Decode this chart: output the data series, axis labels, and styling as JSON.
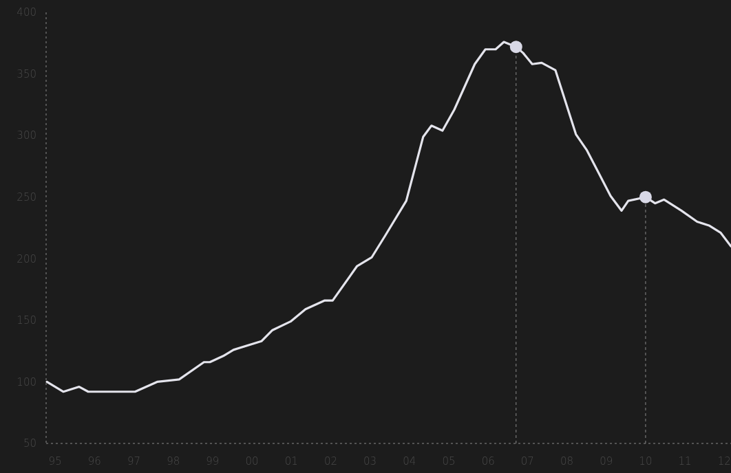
{
  "chart_data": {
    "type": "line",
    "x": [
      1994.79,
      1995.21,
      1995.61,
      1995.84,
      1996.21,
      1996.47,
      1997.03,
      1997.59,
      1998.15,
      1998.78,
      1998.93,
      1999.27,
      1999.53,
      2000.24,
      2000.52,
      2000.98,
      2001.36,
      2001.84,
      2002.05,
      2002.67,
      2003.04,
      2003.39,
      2003.92,
      2004.35,
      2004.56,
      2004.84,
      2005.14,
      2005.66,
      2005.93,
      2006.19,
      2006.4,
      2006.71,
      2006.89,
      2007.12,
      2007.36,
      2007.71,
      2008.23,
      2008.51,
      2009.11,
      2009.39,
      2009.56,
      2010.0,
      2010.24,
      2010.47,
      2010.91,
      2011.31,
      2011.61,
      2011.91,
      2012.17
    ],
    "series": [
      {
        "color": "#e4e4ec",
        "values": [
          100,
          92,
          96,
          92,
          92,
          92,
          92,
          100,
          102,
          116,
          116,
          121,
          126,
          133,
          142,
          149,
          159,
          166,
          166,
          194,
          201,
          219,
          247,
          299,
          308,
          304,
          321,
          358,
          370,
          370,
          376,
          372,
          367,
          358,
          359,
          353,
          301,
          288,
          251,
          239,
          247,
          250,
          245,
          248,
          239,
          230,
          227,
          221,
          210
        ]
      },
      {
        "type": "scatter",
        "marker": "circle",
        "color": "#d8d8e6",
        "x": [
          2006.71,
          2010.0
        ],
        "values": [
          372,
          250
        ]
      }
    ],
    "xlim": [
      1994.77,
      2012.17
    ],
    "xticks": [
      {
        "value": 1995,
        "label": "95"
      },
      {
        "value": 1996,
        "label": "96"
      },
      {
        "value": 1997,
        "label": "97"
      },
      {
        "value": 1998,
        "label": "98"
      },
      {
        "value": 1999,
        "label": "99"
      },
      {
        "value": 2000,
        "label": "00"
      },
      {
        "value": 2001,
        "label": "01"
      },
      {
        "value": 2002,
        "label": "02"
      },
      {
        "value": 2003,
        "label": "03"
      },
      {
        "value": 2004,
        "label": "04"
      },
      {
        "value": 2005,
        "label": "05"
      },
      {
        "value": 2006,
        "label": "06"
      },
      {
        "value": 2007,
        "label": "07"
      },
      {
        "value": 2008,
        "label": "08"
      },
      {
        "value": 2009,
        "label": "09"
      },
      {
        "value": 2010,
        "label": "10"
      },
      {
        "value": 2011,
        "label": "11"
      },
      {
        "value": 2012,
        "label": "12"
      }
    ],
    "ylim": [
      50,
      400
    ],
    "yticks": [
      50,
      100,
      150,
      200,
      250,
      300,
      350,
      400
    ],
    "ref_lines": [
      {
        "axis": "x",
        "value": 2006.71,
        "line_style": "dashed",
        "color": "#8a8a8a"
      },
      {
        "axis": "x",
        "value": 2010.0,
        "line_style": "dashed",
        "color": "#8a8a8a"
      }
    ],
    "grid": false,
    "line_style": "solid"
  }
}
